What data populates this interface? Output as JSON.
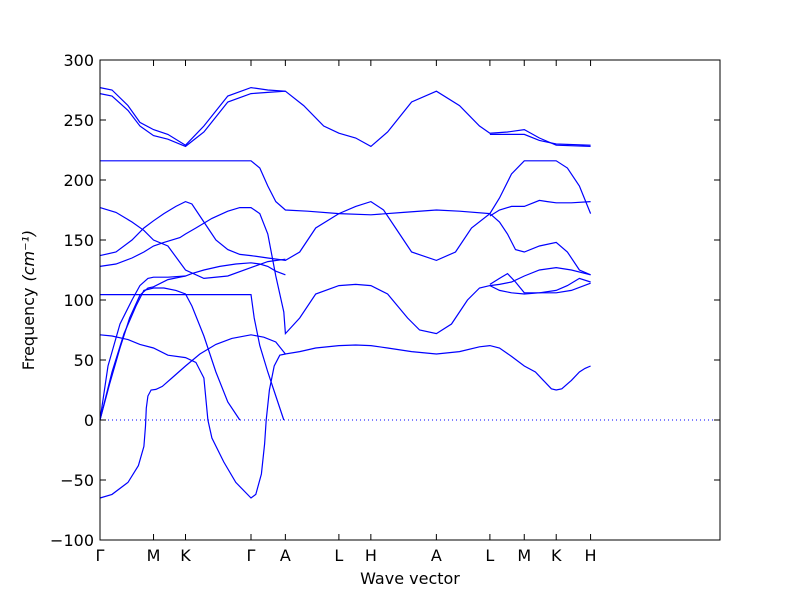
{
  "chart_data": {
    "type": "line",
    "title": "",
    "xlabel": "Wave vector",
    "ylabel_text": "Frequency",
    "ylabel_unit": "(cm⁻¹)",
    "ylim": [
      -100,
      300
    ],
    "yticks": [
      -100,
      -50,
      0,
      50,
      100,
      150,
      200,
      250,
      300
    ],
    "ytick_labels": [
      "−100",
      "−50",
      "0",
      "50",
      "100",
      "150",
      "200",
      "250",
      "300"
    ],
    "xlim": [
      0,
      7.76
    ],
    "kpoints": [
      {
        "label": "Γ",
        "x": 0.0
      },
      {
        "label": "M",
        "x": 0.67
      },
      {
        "label": "K",
        "x": 1.07
      },
      {
        "label": "Γ",
        "x": 1.89
      },
      {
        "label": "A",
        "x": 2.32
      },
      {
        "label": "L",
        "x": 2.99
      },
      {
        "label": "H",
        "x": 3.39
      },
      {
        "label": "A",
        "x": 4.21
      },
      {
        "label": "L",
        "x": 4.88
      },
      {
        "label": "M",
        "x": 5.31
      },
      {
        "label": "K",
        "x": 5.71
      },
      {
        "label": "H",
        "x": 6.14
      }
    ],
    "grid": false,
    "legend": "none",
    "colors": {
      "band": "#0000ff",
      "zero": "#0000ff",
      "axis": "#000000"
    },
    "series": [
      {
        "points": [
          [
            0,
            -65
          ],
          [
            0.15,
            -62
          ],
          [
            0.35,
            -52
          ],
          [
            0.48,
            -38
          ],
          [
            0.55,
            -22
          ],
          [
            0.57,
            -5
          ],
          [
            0.58,
            10
          ],
          [
            0.6,
            20
          ],
          [
            0.64,
            25
          ],
          [
            0.7,
            25.5
          ],
          [
            0.78,
            28
          ],
          [
            0.9,
            35
          ],
          [
            1.07,
            45
          ],
          [
            1.25,
            55
          ],
          [
            1.45,
            63
          ],
          [
            1.65,
            68
          ],
          [
            1.89,
            71
          ],
          [
            2.05,
            69
          ],
          [
            2.2,
            65
          ],
          [
            2.32,
            55
          ],
          [
            2.5,
            57
          ],
          [
            2.7,
            60
          ],
          [
            2.99,
            62
          ],
          [
            3.2,
            62.5
          ],
          [
            3.39,
            62
          ],
          [
            3.6,
            60
          ],
          [
            3.9,
            57
          ],
          [
            4.21,
            55
          ],
          [
            4.5,
            57
          ],
          [
            4.75,
            61
          ],
          [
            4.88,
            62
          ],
          [
            5.0,
            60
          ],
          [
            5.15,
            53
          ],
          [
            5.31,
            45
          ],
          [
            5.45,
            40
          ],
          [
            5.55,
            33
          ],
          [
            5.65,
            26
          ],
          [
            5.71,
            25
          ],
          [
            5.78,
            26
          ],
          [
            5.9,
            33
          ],
          [
            6.0,
            40
          ],
          [
            6.07,
            43
          ],
          [
            6.14,
            45
          ]
        ]
      },
      {
        "points": [
          [
            0,
            71
          ],
          [
            0.15,
            70
          ],
          [
            0.35,
            67
          ],
          [
            0.5,
            63
          ],
          [
            0.67,
            60
          ],
          [
            0.85,
            54
          ],
          [
            1.07,
            52
          ],
          [
            1.2,
            48
          ],
          [
            1.3,
            35
          ],
          [
            1.35,
            0
          ],
          [
            1.4,
            -15
          ],
          [
            1.55,
            -35
          ],
          [
            1.7,
            -52
          ],
          [
            1.89,
            -65
          ],
          [
            1.95,
            -62
          ],
          [
            2.02,
            -45
          ],
          [
            2.06,
            -20
          ],
          [
            2.08,
            0
          ],
          [
            2.12,
            25
          ],
          [
            2.18,
            45
          ],
          [
            2.25,
            54
          ],
          [
            2.32,
            55
          ]
        ]
      },
      {
        "points": [
          [
            0,
            0
          ],
          [
            0.12,
            30
          ],
          [
            0.25,
            60
          ],
          [
            0.37,
            85
          ],
          [
            0.5,
            104
          ],
          [
            0.6,
            110
          ],
          [
            0.67,
            111
          ],
          [
            0.85,
            117
          ],
          [
            1.0,
            119
          ],
          [
            1.07,
            120
          ],
          [
            1.15,
            122
          ],
          [
            1.3,
            125
          ],
          [
            1.5,
            128
          ],
          [
            1.7,
            130
          ],
          [
            1.89,
            131
          ],
          [
            2.0,
            130
          ],
          [
            2.1,
            128
          ],
          [
            2.2,
            124
          ],
          [
            2.32,
            121
          ]
        ]
      },
      {
        "points": [
          [
            0,
            0
          ],
          [
            0.15,
            40
          ],
          [
            0.3,
            72
          ],
          [
            0.45,
            95
          ],
          [
            0.55,
            108
          ],
          [
            0.67,
            110
          ],
          [
            0.8,
            110
          ],
          [
            0.95,
            108
          ],
          [
            1.07,
            105
          ],
          [
            1.15,
            95
          ],
          [
            1.3,
            70
          ],
          [
            1.45,
            40
          ],
          [
            1.6,
            15
          ],
          [
            1.75,
            0
          ]
        ]
      },
      {
        "points": [
          [
            0,
            104.5
          ],
          [
            1.89,
            104.5
          ],
          [
            1.93,
            85
          ],
          [
            2.0,
            62
          ],
          [
            2.1,
            40
          ],
          [
            2.2,
            20
          ],
          [
            2.3,
            0
          ]
        ]
      },
      {
        "points": [
          [
            0,
            0
          ],
          [
            0.1,
            45
          ],
          [
            0.25,
            80
          ],
          [
            0.4,
            100
          ],
          [
            0.5,
            112
          ],
          [
            0.6,
            118
          ],
          [
            0.67,
            119
          ],
          [
            0.85,
            119
          ],
          [
            1.07,
            120
          ]
        ]
      },
      {
        "points": [
          [
            0,
            128
          ],
          [
            0.2,
            130
          ],
          [
            0.4,
            135
          ],
          [
            0.55,
            140
          ],
          [
            0.67,
            145
          ],
          [
            0.8,
            148
          ],
          [
            1.0,
            152
          ],
          [
            1.07,
            155
          ],
          [
            1.2,
            160
          ],
          [
            1.4,
            168
          ],
          [
            1.6,
            174
          ],
          [
            1.75,
            177
          ],
          [
            1.89,
            177
          ],
          [
            2.0,
            172
          ],
          [
            2.1,
            155
          ],
          [
            2.2,
            120
          ],
          [
            2.3,
            90
          ],
          [
            2.32,
            72
          ],
          [
            2.5,
            85
          ],
          [
            2.7,
            105
          ],
          [
            2.99,
            112
          ],
          [
            3.2,
            113
          ],
          [
            3.39,
            112
          ],
          [
            3.6,
            105
          ],
          [
            3.85,
            85
          ],
          [
            4.0,
            75
          ],
          [
            4.21,
            72
          ],
          [
            4.4,
            80
          ],
          [
            4.6,
            100
          ],
          [
            4.75,
            110
          ],
          [
            4.88,
            112
          ],
          [
            5.0,
            113
          ],
          [
            5.15,
            115
          ],
          [
            5.31,
            120
          ],
          [
            5.5,
            125
          ],
          [
            5.71,
            127
          ],
          [
            5.9,
            125
          ],
          [
            6.14,
            121
          ]
        ]
      },
      {
        "points": [
          [
            0,
            137
          ],
          [
            0.2,
            140
          ],
          [
            0.4,
            150
          ],
          [
            0.55,
            160
          ],
          [
            0.67,
            166
          ],
          [
            0.8,
            172
          ],
          [
            0.95,
            178
          ],
          [
            1.07,
            182
          ],
          [
            1.15,
            180
          ],
          [
            1.3,
            165
          ],
          [
            1.45,
            150
          ],
          [
            1.6,
            142
          ],
          [
            1.75,
            138
          ],
          [
            1.89,
            137
          ],
          [
            2.1,
            135
          ],
          [
            2.32,
            133
          ],
          [
            2.5,
            140
          ],
          [
            2.7,
            160
          ],
          [
            2.99,
            172
          ],
          [
            3.2,
            178
          ],
          [
            3.39,
            182
          ],
          [
            3.55,
            175
          ],
          [
            3.7,
            160
          ],
          [
            3.9,
            140
          ],
          [
            4.21,
            133
          ],
          [
            4.45,
            140
          ],
          [
            4.65,
            160
          ],
          [
            4.88,
            172
          ],
          [
            5.0,
            165
          ],
          [
            5.1,
            155
          ],
          [
            5.2,
            142
          ],
          [
            5.31,
            140
          ],
          [
            5.5,
            145
          ],
          [
            5.71,
            148
          ],
          [
            5.85,
            140
          ],
          [
            6.0,
            125
          ],
          [
            6.14,
            121
          ]
        ]
      },
      {
        "points": [
          [
            0,
            177
          ],
          [
            0.2,
            173
          ],
          [
            0.4,
            165
          ],
          [
            0.55,
            158
          ],
          [
            0.67,
            150
          ],
          [
            0.85,
            145
          ],
          [
            1.07,
            125
          ],
          [
            1.3,
            118
          ],
          [
            1.6,
            120
          ],
          [
            1.89,
            127
          ],
          [
            2.1,
            132
          ],
          [
            2.32,
            134
          ]
        ]
      },
      {
        "points": [
          [
            0,
            216
          ],
          [
            1.89,
            216
          ],
          [
            2.0,
            210
          ],
          [
            2.1,
            195
          ],
          [
            2.2,
            182
          ],
          [
            2.32,
            175
          ],
          [
            2.6,
            174
          ],
          [
            2.99,
            172
          ],
          [
            3.39,
            171
          ],
          [
            3.8,
            173
          ],
          [
            4.21,
            175
          ],
          [
            4.5,
            174
          ],
          [
            4.88,
            172
          ],
          [
            5.0,
            185
          ],
          [
            5.15,
            205
          ],
          [
            5.31,
            216
          ],
          [
            5.5,
            216
          ],
          [
            5.71,
            216
          ],
          [
            5.85,
            210
          ],
          [
            6.0,
            195
          ],
          [
            6.14,
            172
          ]
        ]
      },
      {
        "points": [
          [
            0,
            272
          ],
          [
            0.15,
            270
          ],
          [
            0.35,
            258
          ],
          [
            0.5,
            245
          ],
          [
            0.67,
            237
          ],
          [
            0.85,
            234
          ],
          [
            1.07,
            228
          ],
          [
            1.3,
            240
          ],
          [
            1.6,
            265
          ],
          [
            1.89,
            272
          ],
          [
            2.1,
            273
          ],
          [
            2.32,
            274
          ],
          [
            2.55,
            262
          ],
          [
            2.8,
            245
          ],
          [
            2.99,
            239
          ],
          [
            3.2,
            235
          ],
          [
            3.39,
            228
          ],
          [
            3.6,
            240
          ],
          [
            3.9,
            265
          ],
          [
            4.21,
            274
          ],
          [
            4.5,
            262
          ],
          [
            4.75,
            245
          ],
          [
            4.88,
            239
          ],
          [
            5.1,
            240
          ],
          [
            5.31,
            242
          ],
          [
            5.5,
            235
          ],
          [
            5.71,
            229
          ],
          [
            6.14,
            228
          ]
        ]
      },
      {
        "points": [
          [
            0,
            277
          ],
          [
            0.15,
            275
          ],
          [
            0.35,
            262
          ],
          [
            0.5,
            248
          ],
          [
            0.67,
            242
          ],
          [
            0.85,
            238
          ],
          [
            1.07,
            229
          ],
          [
            1.3,
            245
          ],
          [
            1.6,
            270
          ],
          [
            1.89,
            277
          ],
          [
            2.1,
            275
          ],
          [
            2.32,
            274
          ]
        ]
      },
      {
        "points": [
          [
            4.88,
            113
          ],
          [
            5.0,
            118
          ],
          [
            5.1,
            122
          ],
          [
            5.2,
            115
          ],
          [
            5.31,
            106
          ],
          [
            5.5,
            106
          ],
          [
            5.71,
            106
          ],
          [
            5.9,
            108
          ],
          [
            6.14,
            114
          ]
        ]
      },
      {
        "points": [
          [
            4.88,
            170
          ],
          [
            5.0,
            175
          ],
          [
            5.15,
            178
          ],
          [
            5.31,
            178
          ],
          [
            5.5,
            183
          ],
          [
            5.6,
            182
          ],
          [
            5.71,
            181
          ],
          [
            5.9,
            181
          ],
          [
            6.14,
            182
          ]
        ]
      },
      {
        "points": [
          [
            4.88,
            112
          ],
          [
            5.0,
            108
          ],
          [
            5.15,
            106
          ],
          [
            5.31,
            105
          ],
          [
            5.5,
            106
          ],
          [
            5.71,
            108
          ],
          [
            5.85,
            112
          ],
          [
            6.0,
            118
          ],
          [
            6.14,
            115
          ]
        ]
      },
      {
        "points": [
          [
            4.88,
            238
          ],
          [
            5.1,
            238
          ],
          [
            5.31,
            238
          ],
          [
            5.5,
            233
          ],
          [
            5.71,
            230
          ],
          [
            6.14,
            229
          ]
        ]
      }
    ]
  }
}
